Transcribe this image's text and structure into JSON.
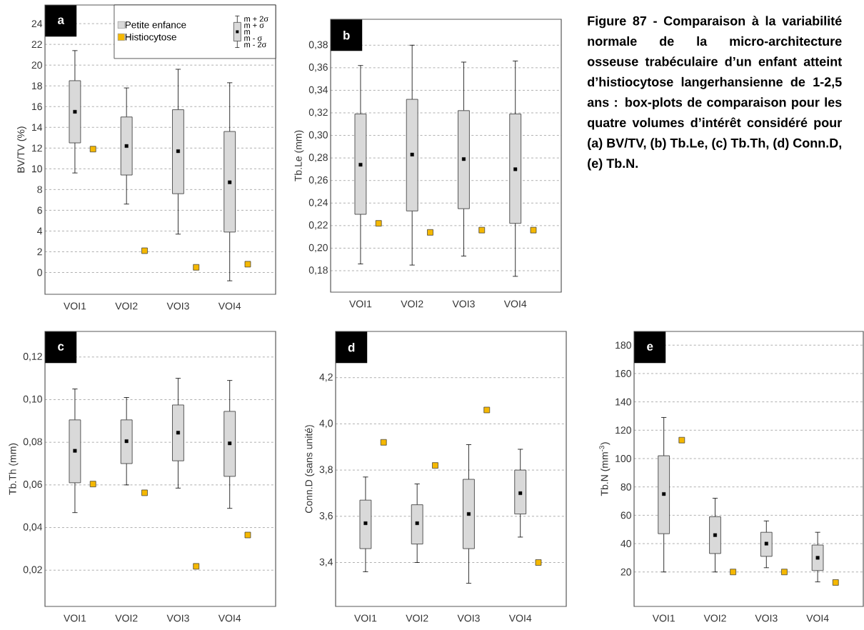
{
  "chart_data": [
    {
      "type": "box",
      "title": "a",
      "ylabel": "BV/TV (%)",
      "categories": [
        "VOI1",
        "VOI2",
        "VOI3",
        "VOI4"
      ],
      "ylim": [
        -2.1,
        25.8
      ],
      "yticks": [
        0,
        2,
        4,
        6,
        8,
        10,
        12,
        14,
        16,
        18,
        20,
        22,
        24
      ],
      "grid": "y",
      "legend": "top right",
      "annotations": [
        "m + 2σ",
        "m + σ",
        "m",
        "m - σ",
        "m - 2σ"
      ],
      "series": [
        {
          "name": "Petite enfance",
          "color": "#d9d9d9",
          "boxes": [
            {
              "low": 9.6,
              "q1": 12.5,
              "median": 15.5,
              "q3": 18.5,
              "high": 21.4
            },
            {
              "low": 6.6,
              "q1": 9.4,
              "median": 12.2,
              "q3": 15.0,
              "high": 17.8
            },
            {
              "low": 3.7,
              "q1": 7.6,
              "median": 11.7,
              "q3": 15.7,
              "high": 19.6
            },
            {
              "low": -0.8,
              "q1": 3.9,
              "median": 8.7,
              "q3": 13.6,
              "high": 18.3
            }
          ]
        },
        {
          "name": "Histiocytose",
          "type": "scatter",
          "color": "#f5b800",
          "marker": "square",
          "x": [
            "VOI1",
            "VOI2",
            "VOI3",
            "VOI4"
          ],
          "values": [
            11.9,
            2.1,
            0.5,
            0.8
          ]
        }
      ]
    },
    {
      "type": "box",
      "title": "b",
      "ylabel": "Tb.Le (mm)",
      "categories": [
        "VOI1",
        "VOI2",
        "VOI3",
        "VOI4"
      ],
      "ylim": [
        0.161,
        0.403
      ],
      "yticks": [
        {
          "value": 0.18,
          "label": "0,18"
        },
        {
          "value": 0.2,
          "label": "0,20"
        },
        {
          "value": 0.22,
          "label": "0,22"
        },
        {
          "value": 0.24,
          "label": "0,24"
        },
        {
          "value": 0.26,
          "label": "0,26"
        },
        {
          "value": 0.28,
          "label": "0,28"
        },
        {
          "value": 0.3,
          "label": "0,30"
        },
        {
          "value": 0.32,
          "label": "0,32"
        },
        {
          "value": 0.34,
          "label": "0,34"
        },
        {
          "value": 0.36,
          "label": "0,36"
        },
        {
          "value": 0.38,
          "label": "0,38"
        }
      ],
      "grid": "y",
      "annotations": [
        "**Figure 87 - Comparaison à la variabilité normale de la micro-architecture osseuse trabéculaire d’un enfant atteint d’histiocytose langerhansienne de 1-2,5 ans : box-plots de comparaison pour les quatre volumes d’intérêt considéré pour (a) BV/TV, (b) Tb.Le, (c) Tb.Th, (d) Conn.D, (e) Tb.N.**"
      ],
      "series": [
        {
          "type": "box",
          "color": "#d9d9d9",
          "boxes": [
            {
              "low": 0.186,
              "q1": 0.23,
              "median": 0.274,
              "q3": 0.319,
              "high": 0.362
            },
            {
              "low": 0.185,
              "q1": 0.233,
              "median": 0.283,
              "q3": 0.332,
              "high": 0.38
            },
            {
              "low": 0.193,
              "q1": 0.235,
              "median": 0.279,
              "q3": 0.322,
              "high": 0.365
            },
            {
              "low": 0.175,
              "q1": 0.222,
              "median": 0.27,
              "q3": 0.319,
              "high": 0.366
            }
          ]
        },
        {
          "type": "scatter",
          "color": "#f5b800",
          "marker": "square",
          "x": [
            "VOI1",
            "VOI2",
            "VOI3",
            "VOI4"
          ],
          "values": [
            0.222,
            0.214,
            0.216,
            0.216
          ]
        }
      ]
    },
    {
      "type": "box",
      "title": "c",
      "ylabel": "Tb.Th (mm)",
      "categories": [
        "VOI1",
        "VOI2",
        "VOI3",
        "VOI4"
      ],
      "ylim": [
        0.003,
        0.132
      ],
      "yticks": [
        {
          "value": 0.02,
          "label": "0,02"
        },
        {
          "value": 0.04,
          "label": "0,04"
        },
        {
          "value": 0.06,
          "label": "0,06"
        },
        {
          "value": 0.08,
          "label": "0,08"
        },
        {
          "value": 0.1,
          "label": "0,10"
        },
        {
          "value": 0.12,
          "label": "0,12"
        }
      ],
      "grid": "y",
      "series": [
        {
          "type": "box",
          "color": "#d9d9d9",
          "boxes": [
            {
              "low": 0.047,
              "q1": 0.061,
              "median": 0.076,
              "q3": 0.0905,
              "high": 0.105
            },
            {
              "low": 0.06,
              "q1": 0.07,
              "median": 0.0805,
              "q3": 0.0905,
              "high": 0.101
            },
            {
              "low": 0.0585,
              "q1": 0.0713,
              "median": 0.0845,
              "q3": 0.0975,
              "high": 0.11
            },
            {
              "low": 0.049,
              "q1": 0.064,
              "median": 0.0795,
              "q3": 0.0945,
              "high": 0.109
            }
          ]
        },
        {
          "type": "scatter",
          "color": "#f5b800",
          "marker": "square",
          "x": [
            "VOI1",
            "VOI2",
            "VOI3",
            "VOI4"
          ],
          "values": [
            0.0604,
            0.0563,
            0.0218,
            0.0365
          ]
        }
      ]
    },
    {
      "type": "box",
      "title": "d",
      "ylabel": "Conn.D (sans unité)",
      "categories": [
        "VOI1",
        "VOI2",
        "VOI3",
        "VOI4"
      ],
      "ylim": [
        3.21,
        4.4
      ],
      "yticks": [
        {
          "value": 3.4,
          "label": "3,4"
        },
        {
          "value": 3.6,
          "label": "3,6"
        },
        {
          "value": 3.8,
          "label": "3,8"
        },
        {
          "value": 4.0,
          "label": "4,0"
        },
        {
          "value": 4.2,
          "label": "4,2"
        }
      ],
      "grid": "y",
      "series": [
        {
          "type": "box",
          "color": "#d9d9d9",
          "boxes": [
            {
              "low": 3.36,
              "q1": 3.46,
              "median": 3.57,
              "q3": 3.67,
              "high": 3.77
            },
            {
              "low": 3.4,
              "q1": 3.48,
              "median": 3.57,
              "q3": 3.65,
              "high": 3.74
            },
            {
              "low": 3.31,
              "q1": 3.46,
              "median": 3.61,
              "q3": 3.76,
              "high": 3.91
            },
            {
              "low": 3.51,
              "q1": 3.61,
              "median": 3.7,
              "q3": 3.8,
              "high": 3.89
            }
          ]
        },
        {
          "type": "scatter",
          "color": "#f5b800",
          "marker": "square",
          "x": [
            "VOI1",
            "VOI2",
            "VOI3",
            "VOI4"
          ],
          "values": [
            3.92,
            3.82,
            4.06,
            3.4
          ]
        }
      ]
    },
    {
      "type": "box",
      "title": "e",
      "ylabel": "Tb.N (mm$^{-3}$)",
      "categories": [
        "VOI1",
        "VOI2",
        "VOI3",
        "VOI4"
      ],
      "ylim": [
        -4.3,
        189.7
      ],
      "yticks": [
        20,
        40,
        60,
        80,
        100,
        120,
        140,
        160,
        180
      ],
      "grid": "y",
      "series": [
        {
          "type": "box",
          "color": "#d9d9d9",
          "boxes": [
            {
              "low": 20,
              "q1": 47,
              "median": 75,
              "q3": 102,
              "high": 129
            },
            {
              "low": 20,
              "q1": 33,
              "median": 46,
              "q3": 59,
              "high": 72
            },
            {
              "low": 23,
              "q1": 31,
              "median": 40,
              "q3": 48,
              "high": 56
            },
            {
              "low": 13,
              "q1": 21,
              "median": 30,
              "q3": 39,
              "high": 48
            }
          ]
        },
        {
          "type": "scatter",
          "color": "#f5b800",
          "marker": "square",
          "x": [
            "VOI1",
            "VOI2",
            "VOI3",
            "VOI4"
          ],
          "values": [
            113,
            20,
            20,
            12.6
          ]
        }
      ]
    }
  ]
}
